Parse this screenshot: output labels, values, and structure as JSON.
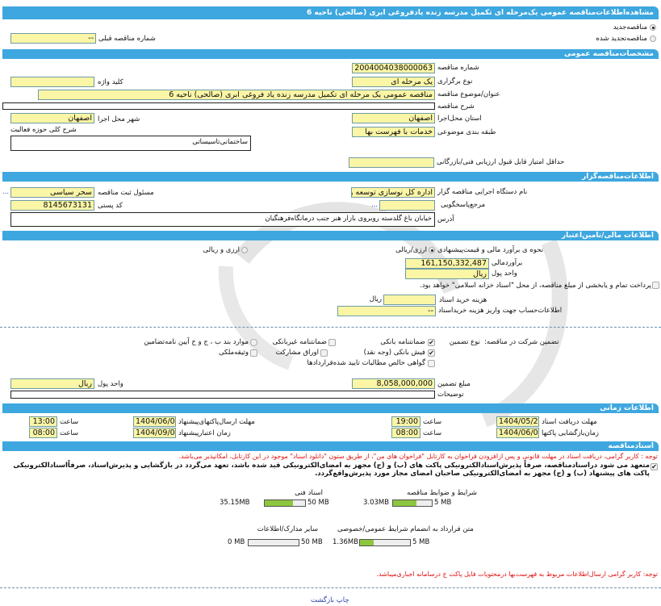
{
  "title": "مشاهده‌اطلاعات‌مناقصه عمومی یک‌مرحله ای تکمیل مدرسه زنده یادفروغی ابری (صالحی) ناحیه 6",
  "tender_type": {
    "new_label": "مناقصه‌جدید",
    "renewed_label": "مناقصه‌تجدید شده",
    "selected": "new"
  },
  "previous_number": {
    "label": "شماره مناقصه قبلی",
    "value": "--"
  },
  "general": {
    "section": "مشخصات‌مناقصه عمومی",
    "number_label": "شماره مناقصه",
    "number": "2004004038000063",
    "holding_type_label": "نوع برگزاری",
    "holding_type": "یک مرحله ای",
    "keyword_label": "کلید واژه",
    "keyword": "",
    "subject_label": "عنوان/موضوع مناقصه",
    "subject": "مناقصه عمومی یک مرحله ای تکمیل مدرسه زنده یاد فروغی ابری (صالحی) ناحیه 6",
    "description_label": "شرح مناقصه",
    "description": "",
    "province_label": "استان محل‌اجرا",
    "province": "اصفهان",
    "city_label": "شهر محل اجرا",
    "city": "اصفهان",
    "category_label": "طبقه بندی موضوعی",
    "category": "خدمات با فهرست بها",
    "activity_label": "شرح کلی حوزه فعالیت",
    "activity": "ساختمانی‌تاسیساتی",
    "min_score_label": "حداقل امتیاز قابل قبول ارزیابی فنی/بازرگانی",
    "min_score": ""
  },
  "organizer": {
    "section": "اطلاعات‌مناقصه‌گزار",
    "org_label": "نام دستگاه اجرایی مناقصه گزار",
    "org": "اداره کل نوسازی  توسعه و",
    "registrar_label": "مسئول ثبت مناقصه",
    "registrar": "سحر سیاسی",
    "more": "...",
    "ref_label": "مرجع‌پاسخگویی",
    "ref": "",
    "postal_label": "کد پستی",
    "postal": "8145673131",
    "address_label": "آدرس",
    "address": "خیابان باغ گلدسته روبروی بازار هنر جنب درمانگاه‌فرهنگیان"
  },
  "finance": {
    "section": "اطلاعات مالی/تامین‌اعتبار",
    "estimate_method_label": "نحوه ی برآورد مالی و قیمت‌پیشنهادی",
    "opt_rial": "ارزی/ریالی",
    "opt_both": "ارزی و ریالی",
    "selected": "rial",
    "estimate_label": "برآوردمالی",
    "estimate": "161,150,332,487",
    "currency_label": "واحد پول",
    "currency": "ریال",
    "treasury_text": "پرداخت تمام و یابخشی از مبلغ مناقصه، از محل \"اسناد خزانه اسلامی\" خواهد بود.",
    "treasury_checked": false,
    "doc_cost_label": "هزینه خرید اسناد",
    "doc_cost": "",
    "doc_cost_unit": "ریال",
    "account_label": "اطلاعات‌حساب جهت واریز هزینه خریداسناد",
    "account": "--"
  },
  "guarantee": {
    "label": "تضمین شرکت در مناقصه:",
    "type_label": "نوع تضمین",
    "options": [
      {
        "label": "ضمانتنامه بانکی",
        "checked": true
      },
      {
        "label": "ضمانتنامه غیربانکی",
        "checked": false
      },
      {
        "label": "موارد بند ب ، ج و خ آیین نامه‌تضامین",
        "checked": false
      },
      {
        "label": "فیش بانکی (وجه نقد)",
        "checked": true
      },
      {
        "label": "اوراق مشارکت",
        "checked": false
      },
      {
        "label": "وثیقه‌ملکی",
        "checked": false
      },
      {
        "label": "گواهی خالص مطالبات تایید شده‌قراردادها",
        "checked": false
      }
    ],
    "amount_label": "مبلغ تضمین",
    "amount": "8,058,000,000",
    "currency_label": "واحد پول",
    "currency": "ریال",
    "notes_label": "توضیحات",
    "notes": ""
  },
  "timing": {
    "section": "اطلاعات زمانی",
    "doc_deadline_label": "مهلت دریافت اسناد",
    "doc_deadline": "1404/05/20",
    "doc_deadline_time": "19:00",
    "submit_deadline_label": "مهلت ارسال‌پاکتهای‌پیشنهاد",
    "submit_deadline": "1404/06/01",
    "submit_deadline_time": "13:00",
    "opening_label": "زمان‌بازگشایی پاکتها",
    "opening": "1404/06/03",
    "opening_time": "08:00",
    "validity_label": "زمان اعتبارپیشنهاد",
    "validity": "1404/09/03",
    "validity_time": "08:00",
    "time_label": "ساعت"
  },
  "documents": {
    "section": "اسنادمناقصه",
    "notice": "توجه : کاربر گرامی، دریافت اسناد در مهلت قانونی و پس ازافزودن فراخوان به کارتابل \"فراخوان های من\"، از طریق ستون \"دانلود اسناد\" موجود در این کارتابل، امکانپذیر می‌باشد.",
    "commit_text": "متعهد می شود دراسنادمناقصه، صرفاً پذیرش‌اسنادالکترونیکی پاکت های (ب) و (ج) مجهز به امضای‌الکترونیکی قید شده باشد، تعهد می‌گردد در بازگشایی و پذیرش‌اسناد، صرفاًاسنادالکترونیکی پاکت های پیشنهاد (ب) و (ج) مجهز به امضای‌الکترونیکی صاحبان امضای مجاز مورد پذیرش‌واقع‌گردد.",
    "commit_checked": true,
    "files": [
      {
        "label": "شرایط و ضوابط مناقصه",
        "size": "3.03MB",
        "max": "5 MB",
        "fraction": 0.606
      },
      {
        "label": "اسناد فنی",
        "size": "35.15MB",
        "max": "50 MB",
        "fraction": 0.703
      },
      {
        "label": "متن قرارداد به انضمام شرایط عمومی/خصوصی",
        "size": "1.36MB",
        "max": "5 MB",
        "fraction": 0.272
      },
      {
        "label": "سایر مدارک/اطلاعات",
        "size": "0 MB",
        "max": "50 MB",
        "fraction": 0
      }
    ],
    "note2": "توجه: کاربر گرامی ارسال‌اطلاعات مربوط به فهرست‌بها درمحتویات فایل پاکت ج درسامانه اجباری‌میباشد."
  },
  "footer": {
    "link": "چاپ بازگشت"
  },
  "colors": {
    "header": "#3ea7df",
    "field": "#fbf5a6",
    "progress": "#8dc63f",
    "notice": "#e01010"
  }
}
